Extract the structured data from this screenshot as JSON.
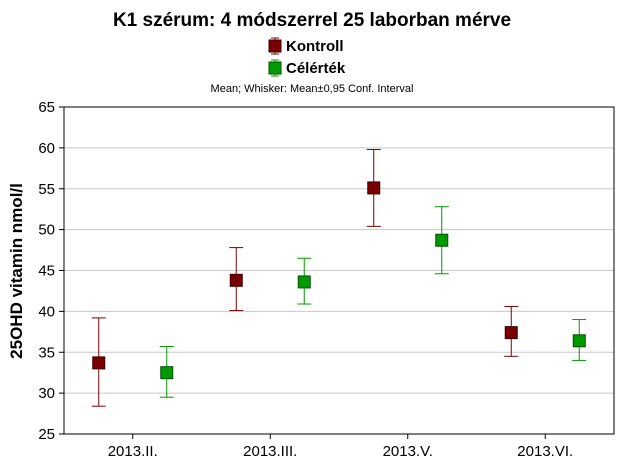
{
  "chart_data": {
    "type": "scatter",
    "title": "K1 szérum: 4 módszerrel  25 laborban mérve",
    "subtitle": "Mean; Whisker: Mean±0,95 Conf. Interval",
    "ylabel": "25OHD vitamin nmol/l",
    "xlabel": "",
    "categories": [
      "2013.II.",
      "2013.III.",
      "2013.V.",
      "2013.VI."
    ],
    "ylim": [
      25,
      65
    ],
    "yticks": [
      25,
      30,
      35,
      40,
      45,
      50,
      55,
      60,
      65
    ],
    "grid": true,
    "legend_position": "top",
    "series": [
      {
        "name": "Kontroll",
        "color": "#7a0000",
        "mean": [
          33.7,
          43.8,
          55.1,
          37.4
        ],
        "lower": [
          28.4,
          40.1,
          50.4,
          34.5
        ],
        "upper": [
          39.2,
          47.8,
          59.8,
          40.6
        ]
      },
      {
        "name": "Célérték",
        "color": "#009a00",
        "mean": [
          32.5,
          43.6,
          48.7,
          36.4
        ],
        "lower": [
          29.5,
          40.9,
          44.6,
          34.0
        ],
        "upper": [
          35.7,
          46.5,
          52.8,
          39.0
        ]
      }
    ]
  }
}
